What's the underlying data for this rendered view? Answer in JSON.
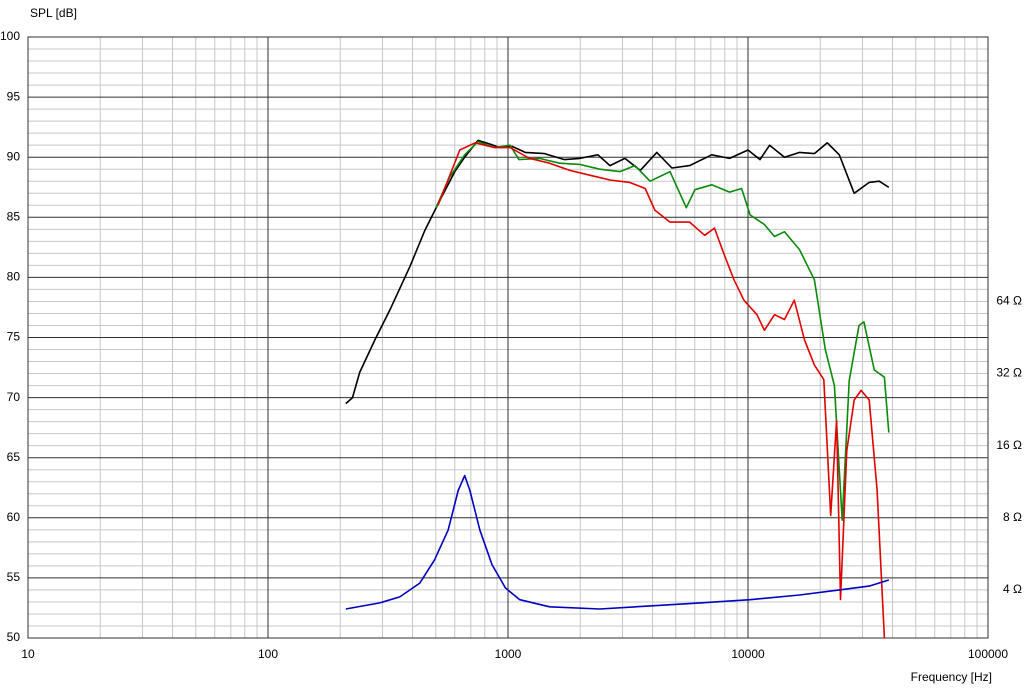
{
  "chart_data": {
    "type": "line",
    "y_label": "SPL [dB]",
    "x_label": "Frequency [Hz]",
    "x_scale": "log",
    "y2_scale": "log",
    "grid": true,
    "minor_grid": true,
    "xlim": [
      10,
      100000
    ],
    "xticks": [
      10,
      100,
      1000,
      10000,
      100000
    ],
    "ylim": [
      50,
      100
    ],
    "yticks": [
      50,
      55,
      60,
      65,
      70,
      75,
      80,
      85,
      90,
      95,
      100
    ],
    "y2lim": [
      2.52,
      812
    ],
    "y2ticks": [
      {
        "value": 4,
        "label": "4 Ω"
      },
      {
        "value": 8,
        "label": "8 Ω"
      },
      {
        "value": 16,
        "label": "16 Ω"
      },
      {
        "value": 32,
        "label": "32 Ω"
      },
      {
        "value": 64,
        "label": "64 Ω"
      }
    ],
    "series": [
      {
        "color": "#000000",
        "x": [
          211,
          225,
          241,
          279,
          322,
          390,
          450,
          520,
          600,
          660,
          750,
          840,
          925,
          1040,
          1180,
          1420,
          1720,
          1990,
          2370,
          2660,
          3070,
          3560,
          4170,
          4820,
          5710,
          7060,
          8380,
          10000,
          11220,
          12300,
          14200,
          16400,
          18900,
          21400,
          24000,
          27700,
          32000,
          35200,
          38600
        ],
        "values": [
          69.5,
          70,
          72.1,
          74.8,
          77.3,
          80.9,
          83.9,
          86.4,
          88.8,
          90,
          91.4,
          91.1,
          90.8,
          90.9,
          90.4,
          90.3,
          89.8,
          89.9,
          90.2,
          89.3,
          89.9,
          88.9,
          90.4,
          89.1,
          89.3,
          90.2,
          89.9,
          90.6,
          89.8,
          91,
          90,
          90.4,
          90.3,
          91.2,
          90.2,
          87,
          87.9,
          88,
          87.5
        ]
      },
      {
        "color": "#0a8a0a",
        "x": [
          501,
          570,
          660,
          750,
          880,
          1020,
          1110,
          1350,
          1640,
          1990,
          2410,
          2930,
          3380,
          3910,
          4730,
          5530,
          6010,
          7060,
          8380,
          9400,
          10200,
          11700,
          12900,
          14200,
          16400,
          18900,
          21000,
          22900,
          24700,
          26400,
          29000,
          30400,
          33600,
          37000,
          38600
        ],
        "values": [
          85.8,
          88.3,
          90.2,
          91.3,
          90.8,
          91,
          89.8,
          89.9,
          89.5,
          89.4,
          89,
          88.8,
          89.3,
          88,
          88.8,
          85.8,
          87.3,
          87.7,
          87.1,
          87.4,
          85.2,
          84.4,
          83.4,
          83.8,
          82.3,
          79.8,
          74,
          71,
          59.8,
          71.4,
          76,
          76.3,
          72.3,
          71.7,
          67.1
        ]
      },
      {
        "color": "#e00000",
        "x": [
          511,
          630,
          730,
          880,
          1020,
          1230,
          1490,
          1810,
          2190,
          2660,
          3210,
          3730,
          4090,
          4730,
          5710,
          6600,
          7250,
          7960,
          8740,
          9610,
          10900,
          11700,
          12900,
          14200,
          15600,
          17200,
          18900,
          20700,
          22100,
          23400,
          24300,
          25800,
          27700,
          29600,
          32000,
          34500,
          37000
        ],
        "values": [
          86,
          90.6,
          91.2,
          90.8,
          90.8,
          89.9,
          89.5,
          88.9,
          88.5,
          88.1,
          87.9,
          87.4,
          85.6,
          84.6,
          84.6,
          83.5,
          84.1,
          81.9,
          79.8,
          78.1,
          76.9,
          75.6,
          76.9,
          76.5,
          78.1,
          74.8,
          72.7,
          71.5,
          60.2,
          68.1,
          53.2,
          65.6,
          69.8,
          70.6,
          69.8,
          62.3,
          50
        ]
      },
      {
        "color": "#0000c0",
        "axis": "y2",
        "x": [
          211,
          292,
          354,
          429,
          494,
          563,
          620,
          660,
          694,
          764,
          858,
          975,
          1120,
          1490,
          2410,
          3910,
          6310,
          10200,
          16400,
          24000,
          32000,
          38600
        ],
        "values": [
          3.33,
          3.53,
          3.74,
          4.27,
          5.34,
          7.1,
          10.4,
          12,
          10.4,
          7.1,
          5.1,
          4.08,
          3.64,
          3.4,
          3.33,
          3.43,
          3.53,
          3.64,
          3.81,
          4,
          4.15,
          4.4
        ]
      }
    ]
  }
}
